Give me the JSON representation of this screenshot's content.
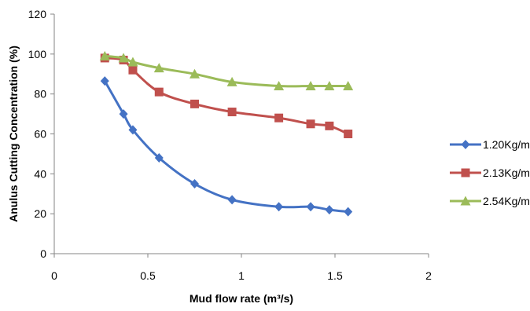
{
  "chart_data": {
    "type": "line",
    "xlabel": "Mud flow rate (m³/s)",
    "ylabel": "Anulus Cutting Concentration (%)",
    "xlim": [
      0,
      2
    ],
    "ylim": [
      0,
      120
    ],
    "x_ticks": [
      0,
      0.5,
      1,
      1.5,
      2
    ],
    "x_tick_labels": [
      "0",
      "0.5",
      "1",
      "1.5",
      "2"
    ],
    "y_ticks": [
      0,
      20,
      40,
      60,
      80,
      100,
      120
    ],
    "y_tick_labels": [
      "0",
      "20",
      "40",
      "60",
      "80",
      "100",
      "120"
    ],
    "grid": false,
    "legend_position": "right",
    "series": [
      {
        "name": "1.20Kg/m",
        "color": "#4472c4",
        "marker": "diamond",
        "points": [
          [
            0.27,
            86.5
          ],
          [
            0.37,
            70
          ],
          [
            0.42,
            62
          ],
          [
            0.56,
            48
          ],
          [
            0.75,
            35
          ],
          [
            0.95,
            27
          ],
          [
            1.2,
            23.5
          ],
          [
            1.37,
            23.5
          ],
          [
            1.47,
            22
          ],
          [
            1.57,
            21
          ]
        ]
      },
      {
        "name": "2.13Kg/m",
        "color": "#c0504d",
        "marker": "square",
        "points": [
          [
            0.27,
            98
          ],
          [
            0.37,
            97
          ],
          [
            0.42,
            92
          ],
          [
            0.56,
            81
          ],
          [
            0.75,
            75
          ],
          [
            0.95,
            71
          ],
          [
            1.2,
            68
          ],
          [
            1.37,
            65
          ],
          [
            1.47,
            64
          ],
          [
            1.57,
            60
          ]
        ]
      },
      {
        "name": "2.54Kg/m",
        "color": "#9bbb59",
        "marker": "triangle",
        "points": [
          [
            0.27,
            99
          ],
          [
            0.37,
            98
          ],
          [
            0.42,
            96
          ],
          [
            0.56,
            93
          ],
          [
            0.75,
            90
          ],
          [
            0.95,
            86
          ],
          [
            1.2,
            84
          ],
          [
            1.37,
            84
          ],
          [
            1.47,
            84
          ],
          [
            1.57,
            84
          ]
        ]
      }
    ]
  }
}
